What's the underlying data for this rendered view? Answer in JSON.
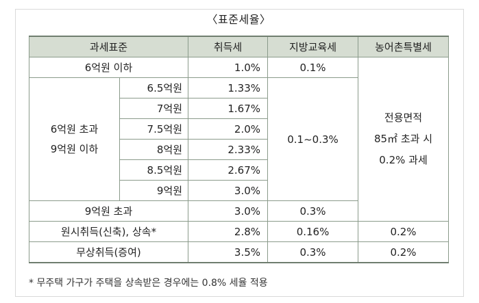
{
  "caption": "〈표준세율〉",
  "headers": [
    "과세표준",
    "취득세",
    "지방교육세",
    "농어촌특별세"
  ],
  "rows": {
    "r1": {
      "base": "6억원 이하",
      "acq": "1.0%",
      "edu": "0.1%"
    },
    "mid": {
      "group_line1": "6억원 초과",
      "group_line2": "9억원 이하",
      "edu_range": "0.1~0.3%",
      "sub": [
        {
          "base": "6.5억원",
          "acq": "1.33%"
        },
        {
          "base": "7억원",
          "acq": "1.67%"
        },
        {
          "base": "7.5억원",
          "acq": "2.0%"
        },
        {
          "base": "8억원",
          "acq": "2.33%"
        },
        {
          "base": "8.5억원",
          "acq": "2.67%"
        },
        {
          "base": "9억원",
          "acq": "3.0%"
        }
      ]
    },
    "r3": {
      "base": "9억원 초과",
      "acq": "3.0%",
      "edu": "0.3%"
    },
    "nong_note": {
      "line1": "전용면적",
      "line2": "85㎡ 초과 시",
      "line3": "0.2% 과세"
    },
    "r4": {
      "base": "원시취득(신축), 상속*",
      "acq": "2.8%",
      "edu": "0.16%",
      "rural": "0.2%"
    },
    "r5": {
      "base": "무상취득(증여)",
      "acq": "3.5%",
      "edu": "0.3%",
      "rural": "0.2%"
    }
  },
  "footnote": "* 무주택 가구가 주택을 상속받은 경우에는 0.8% 세율 적용"
}
